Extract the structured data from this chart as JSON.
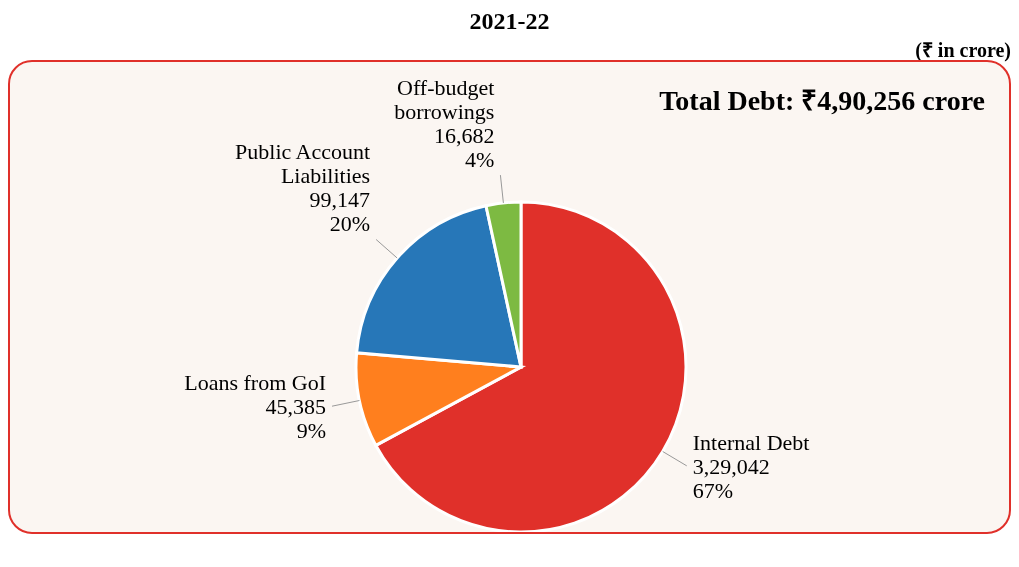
{
  "chart_data": {
    "type": "pie",
    "title": "2021-22",
    "categories": [
      "Internal Debt",
      "Loans from GoI",
      "Public Account Liabilities",
      "Off-budget borrowings"
    ],
    "values": [
      329042,
      45385,
      99147,
      16682
    ],
    "colors": [
      "#e0302a",
      "#ff7f1e",
      "#2777b8",
      "#7dba42"
    ],
    "value_labels": [
      "3,29,042\n67%",
      "45,385\n9%",
      "99,147\n20%",
      "16,682\n4%"
    ],
    "annotations": [
      "(₹ in crore)",
      "Total Debt: ₹4,90,256 crore"
    ],
    "legend": false
  }
}
